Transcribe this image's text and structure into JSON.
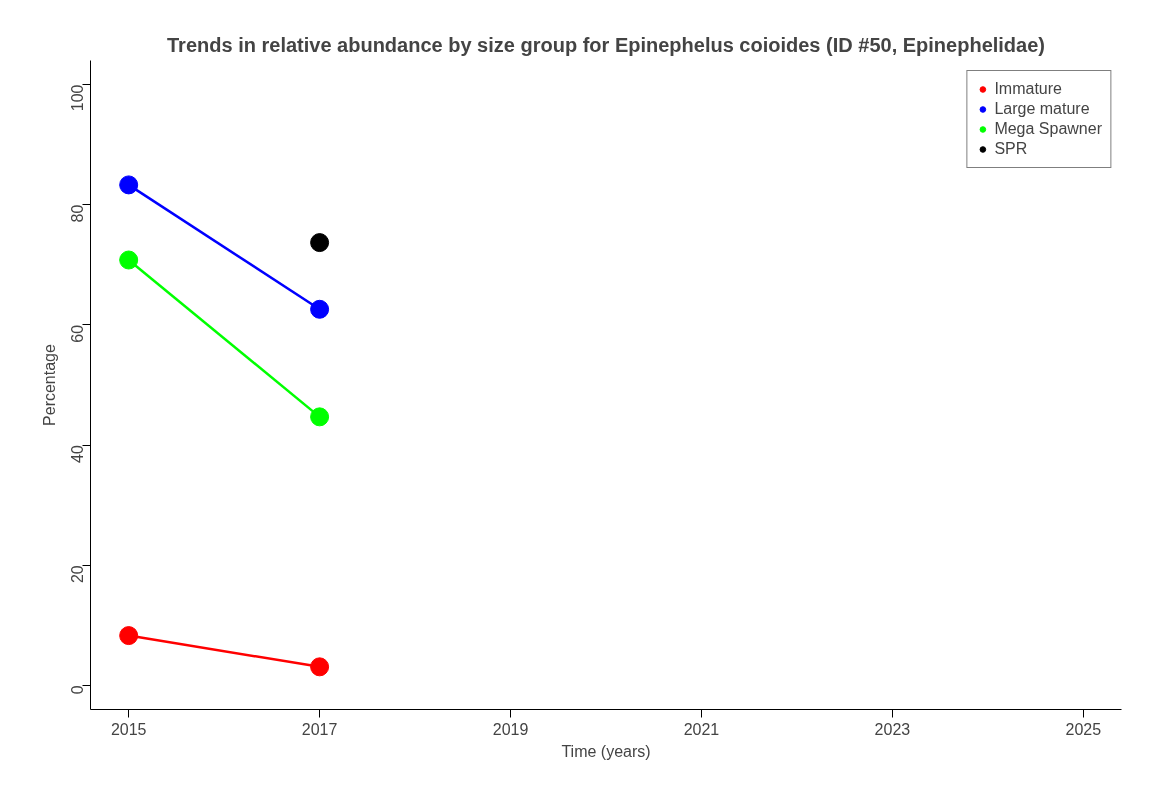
{
  "chart_data": {
    "type": "line",
    "title": "Trends in relative abundance by size group for Epinephelus coioides (ID #50, Epinephelidae)",
    "xlabel": "Time (years)",
    "ylabel": "Percentage",
    "x": [
      2015,
      2017
    ],
    "series": [
      {
        "name": "Immature",
        "color": "#ff0000",
        "values": [
          8.3,
          3.1
        ]
      },
      {
        "name": "Large mature",
        "color": "#0000ff",
        "values": [
          83.3,
          62.6
        ]
      },
      {
        "name": "Mega Spawner",
        "color": "#00ff00",
        "values": [
          70.8,
          44.7
        ]
      },
      {
        "name": "SPR",
        "color": "#000000",
        "type": "scatter",
        "values": [
          null,
          73.7
        ]
      }
    ],
    "xlim": [
      2014.6,
      2025.4
    ],
    "ylim": [
      -4,
      104
    ],
    "xticks": [
      2015,
      2017,
      2019,
      2021,
      2023,
      2025
    ],
    "yticks": [
      0,
      20,
      40,
      60,
      80,
      100
    ],
    "marker": "circle",
    "legend": "top right",
    "grid": false
  }
}
